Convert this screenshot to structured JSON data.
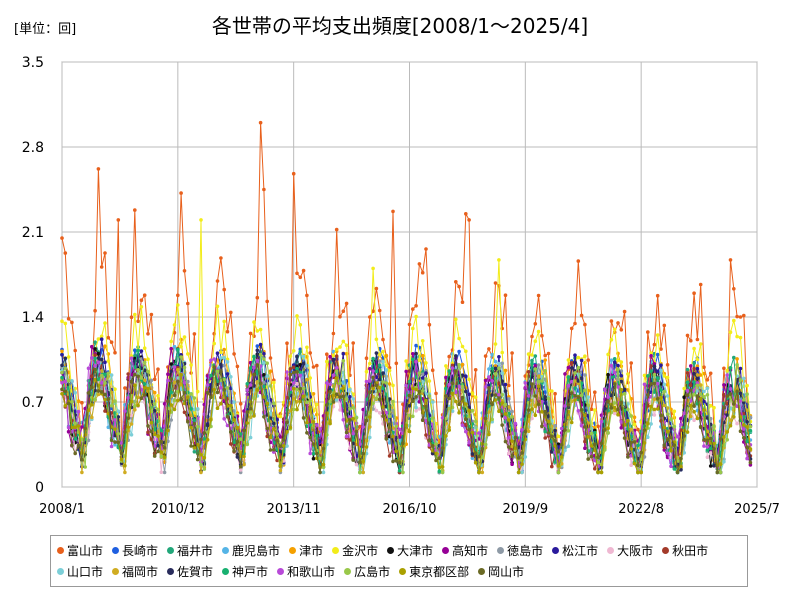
{
  "chart_data": {
    "type": "line",
    "title": "各世帯の平均支出頻度[2008/1～2025/4]",
    "unit_label": "[単位：回]",
    "xlabel": "",
    "ylabel": "",
    "ylim": [
      0,
      3.5
    ],
    "yticks": [
      "0",
      "0.7",
      "1.4",
      "2.1",
      "2.8",
      "3.5"
    ],
    "ytick_values": [
      0,
      0.7,
      1.4,
      2.1,
      2.8,
      3.5
    ],
    "xlim": [
      0,
      210
    ],
    "xticks": [
      "2008/1",
      "2010/12",
      "2013/11",
      "2016/10",
      "2019/9",
      "2022/8",
      "2025/7"
    ],
    "xtick_values": [
      0,
      35,
      70,
      105,
      140,
      175,
      210
    ],
    "grid": true,
    "legend_position": "bottom",
    "series": [
      {
        "name": "富山市",
        "color": "#e8601c",
        "base": 1.25,
        "amp": 0.45,
        "noise": 0.3,
        "seed": 1,
        "peaks": [
          [
            0,
            2.05
          ],
          [
            11,
            2.62
          ],
          [
            17,
            2.2
          ],
          [
            22,
            2.28
          ],
          [
            36,
            2.42
          ],
          [
            60,
            3.0
          ],
          [
            61,
            2.45
          ],
          [
            70,
            2.58
          ],
          [
            83,
            2.12
          ],
          [
            100,
            2.27
          ],
          [
            110,
            1.96
          ],
          [
            122,
            2.25
          ],
          [
            123,
            2.2
          ],
          [
            156,
            1.86
          ],
          [
            202,
            1.87
          ],
          [
            205,
            1.4
          ]
        ]
      },
      {
        "name": "長崎市",
        "color": "#1f5fe0",
        "base": 0.78,
        "amp": 0.3,
        "noise": 0.17,
        "seed": 2,
        "peaks": []
      },
      {
        "name": "福井市",
        "color": "#22a77a",
        "base": 0.76,
        "amp": 0.3,
        "noise": 0.17,
        "seed": 3,
        "peaks": []
      },
      {
        "name": "鹿児島市",
        "color": "#55b4e6",
        "base": 0.75,
        "amp": 0.28,
        "noise": 0.16,
        "seed": 4,
        "peaks": []
      },
      {
        "name": "津市",
        "color": "#f5a000",
        "base": 0.8,
        "amp": 0.3,
        "noise": 0.17,
        "seed": 5,
        "peaks": []
      },
      {
        "name": "金沢市",
        "color": "#f2ec1a",
        "base": 0.98,
        "amp": 0.35,
        "noise": 0.2,
        "seed": 6,
        "peaks": [
          [
            42,
            2.2
          ],
          [
            94,
            1.8
          ],
          [
            132,
            1.87
          ]
        ]
      },
      {
        "name": "大津市",
        "color": "#111111",
        "base": 0.72,
        "amp": 0.3,
        "noise": 0.16,
        "seed": 7,
        "peaks": []
      },
      {
        "name": "高知市",
        "color": "#960096",
        "base": 0.74,
        "amp": 0.3,
        "noise": 0.17,
        "seed": 8,
        "peaks": []
      },
      {
        "name": "徳島市",
        "color": "#8e9aa6",
        "base": 0.7,
        "amp": 0.28,
        "noise": 0.16,
        "seed": 9,
        "peaks": []
      },
      {
        "name": "松江市",
        "color": "#2a1a9c",
        "base": 0.76,
        "amp": 0.3,
        "noise": 0.17,
        "seed": 10,
        "peaks": []
      },
      {
        "name": "大阪市",
        "color": "#efb8d2",
        "base": 0.6,
        "amp": 0.22,
        "noise": 0.14,
        "seed": 11,
        "peaks": []
      },
      {
        "name": "秋田市",
        "color": "#a33a2a",
        "base": 0.7,
        "amp": 0.3,
        "noise": 0.16,
        "seed": 12,
        "peaks": []
      },
      {
        "name": "山口市",
        "color": "#7ccfd8",
        "base": 0.7,
        "amp": 0.28,
        "noise": 0.16,
        "seed": 13,
        "peaks": []
      },
      {
        "name": "福岡市",
        "color": "#d0ac22",
        "base": 0.66,
        "amp": 0.26,
        "noise": 0.15,
        "seed": 14,
        "peaks": []
      },
      {
        "name": "佐賀市",
        "color": "#292c5c",
        "base": 0.73,
        "amp": 0.3,
        "noise": 0.16,
        "seed": 15,
        "peaks": []
      },
      {
        "name": "神戸市",
        "color": "#18b070",
        "base": 0.72,
        "amp": 0.28,
        "noise": 0.16,
        "seed": 16,
        "peaks": []
      },
      {
        "name": "和歌山市",
        "color": "#b84ad8",
        "base": 0.72,
        "amp": 0.28,
        "noise": 0.16,
        "seed": 17,
        "peaks": []
      },
      {
        "name": "広島市",
        "color": "#99c84a",
        "base": 0.72,
        "amp": 0.28,
        "noise": 0.16,
        "seed": 18,
        "peaks": []
      },
      {
        "name": "東京都区部",
        "color": "#aaa000",
        "base": 0.62,
        "amp": 0.22,
        "noise": 0.14,
        "seed": 19,
        "peaks": []
      },
      {
        "name": "岡山市",
        "color": "#6b6a25",
        "base": 0.66,
        "amp": 0.26,
        "noise": 0.15,
        "seed": 20,
        "peaks": []
      }
    ]
  }
}
